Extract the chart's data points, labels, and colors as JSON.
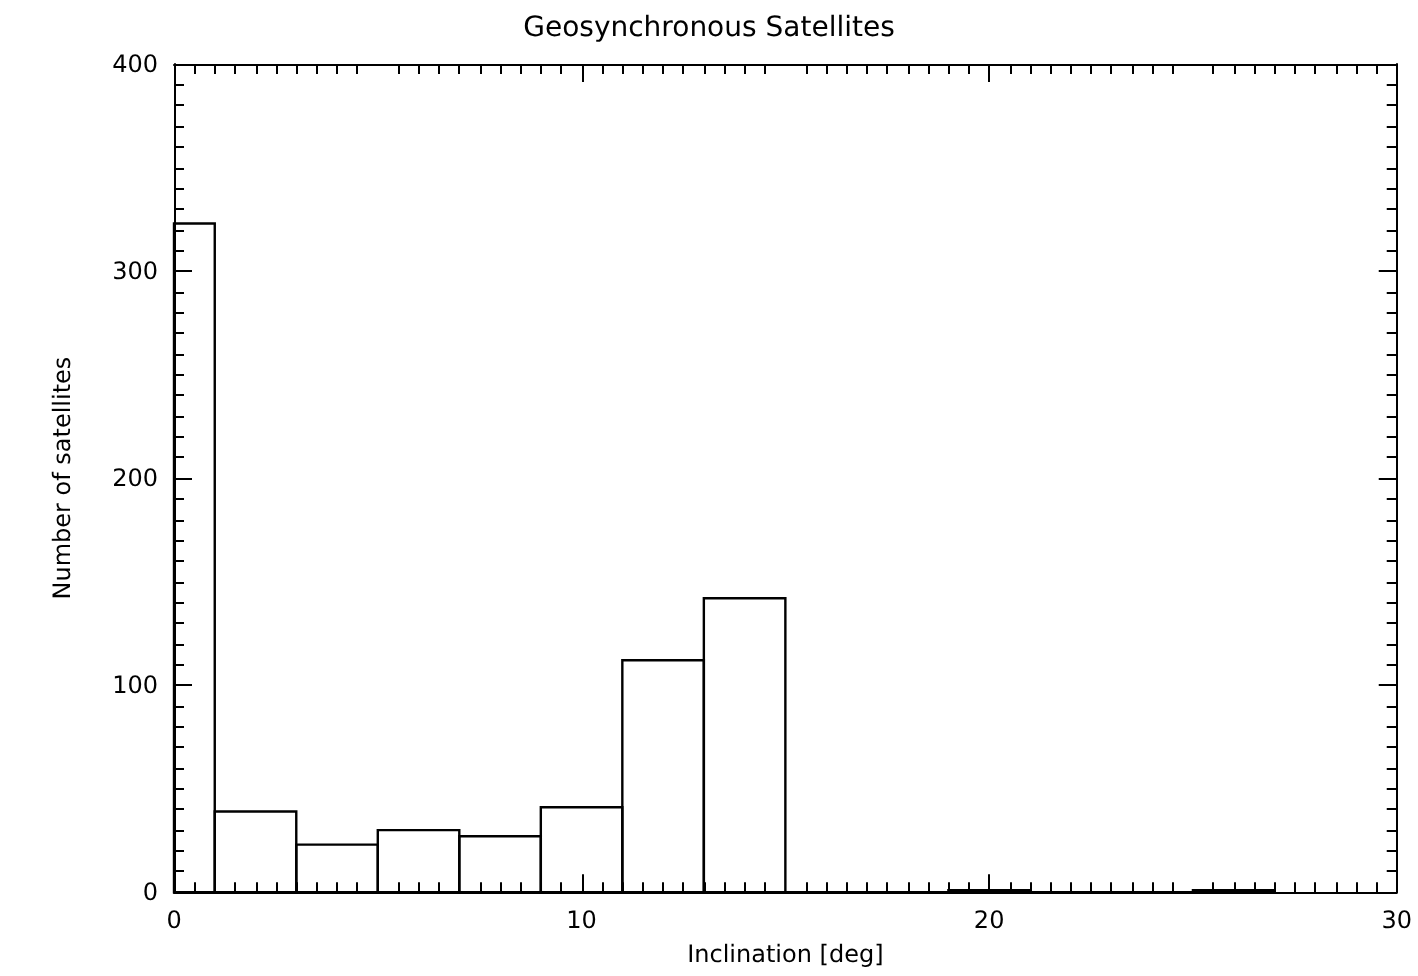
{
  "chart_data": {
    "type": "histogram",
    "title": "Geosynchronous Satellites",
    "xlabel": "Inclination [deg]",
    "ylabel": "Number of satellites",
    "bins": [
      0,
      1,
      3,
      5,
      7,
      9,
      11,
      13,
      15,
      17,
      19,
      21,
      23,
      25,
      27
    ],
    "values": [
      323,
      39,
      23,
      30,
      27,
      41,
      112,
      142,
      0,
      0,
      1,
      0,
      0,
      1
    ],
    "color": "#000000",
    "xlim": [
      0,
      30
    ],
    "xticks": [
      0,
      10,
      20,
      30
    ],
    "ylim": [
      0,
      400
    ],
    "yticks": [
      0,
      100,
      200,
      300,
      400
    ],
    "grid": false
  }
}
